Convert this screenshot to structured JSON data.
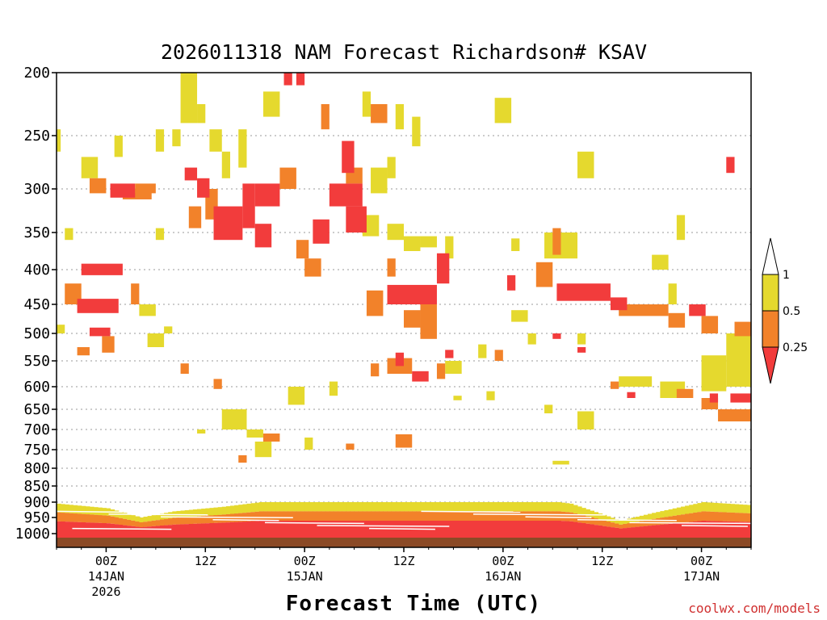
{
  "chart_data": {
    "type": "heatmap",
    "title": "2026011318 NAM Forecast Richardson# KSAV",
    "xlabel": "Forecast Time (UTC)",
    "ylabel": "",
    "y_axis": {
      "unit": "hPa",
      "range": [
        1000,
        200
      ],
      "ticks": [
        "200",
        "250",
        "300",
        "350",
        "400",
        "450",
        "500",
        "550",
        "600",
        "650",
        "700",
        "750",
        "800",
        "850",
        "900",
        "950",
        "1000"
      ]
    },
    "x_axis": {
      "unit": "forecast hour",
      "range": [
        0,
        84
      ],
      "ticks": [
        {
          "hour": 6,
          "label": "00Z",
          "sublabel": "14JAN",
          "year": "2026"
        },
        {
          "hour": 18,
          "label": "12Z",
          "sublabel": "",
          "year": ""
        },
        {
          "hour": 30,
          "label": "00Z",
          "sublabel": "15JAN",
          "year": ""
        },
        {
          "hour": 42,
          "label": "12Z",
          "sublabel": "",
          "year": ""
        },
        {
          "hour": 54,
          "label": "00Z",
          "sublabel": "16JAN",
          "year": ""
        },
        {
          "hour": 66,
          "label": "12Z",
          "sublabel": "",
          "year": ""
        },
        {
          "hour": 78,
          "label": "00Z",
          "sublabel": "17JAN",
          "year": ""
        }
      ]
    },
    "colorbar": {
      "labels": [
        "1",
        "0.5",
        "0.25"
      ],
      "bins": [
        {
          "range": "0.5-1",
          "color": "#e5d92e"
        },
        {
          "range": "0.25-0.5",
          "color": "#f2822a"
        },
        {
          "range": "<0.25",
          "color": "#f23c3c"
        }
      ]
    },
    "levels": [
      [
        {
          "h0": 6.5,
          "h1": 9.5,
          "p0": 295,
          "p1": 310,
          "cat": 2
        },
        {
          "h0": 9.5,
          "h1": 12,
          "p0": 295,
          "p1": 305,
          "cat": 1
        },
        {
          "h0": 3,
          "h1": 8,
          "p0": 392,
          "p1": 408,
          "cat": 2
        },
        {
          "h0": 2.5,
          "h1": 7.5,
          "p0": 442,
          "p1": 465,
          "cat": 2
        },
        {
          "h0": 4,
          "h1": 6.5,
          "p0": 490,
          "p1": 505,
          "cat": 2
        },
        {
          "h0": 2.5,
          "h1": 4,
          "p0": 525,
          "p1": 540,
          "cat": 1
        },
        {
          "h0": 15.5,
          "h1": 17,
          "p0": 280,
          "p1": 292,
          "cat": 2
        },
        {
          "h0": 17,
          "h1": 18.5,
          "p0": 290,
          "p1": 310,
          "cat": 2
        },
        {
          "h0": 19,
          "h1": 22.5,
          "p0": 320,
          "p1": 360,
          "cat": 2
        },
        {
          "h0": 22.5,
          "h1": 24,
          "p0": 295,
          "p1": 345,
          "cat": 2
        },
        {
          "h0": 24,
          "h1": 27,
          "p0": 295,
          "p1": 320,
          "cat": 2
        },
        {
          "h0": 24,
          "h1": 26,
          "p0": 340,
          "p1": 370,
          "cat": 2
        },
        {
          "h0": 27.5,
          "h1": 28.5,
          "p0": 195,
          "p1": 210,
          "cat": 2
        },
        {
          "h0": 29,
          "h1": 30,
          "p0": 195,
          "p1": 210,
          "cat": 2
        },
        {
          "h0": 31,
          "h1": 33,
          "p0": 335,
          "p1": 365,
          "cat": 2
        },
        {
          "h0": 33,
          "h1": 37,
          "p0": 295,
          "p1": 320,
          "cat": 2
        },
        {
          "h0": 35,
          "h1": 37.5,
          "p0": 320,
          "p1": 350,
          "cat": 2
        },
        {
          "h0": 34.5,
          "h1": 36,
          "p0": 255,
          "p1": 285,
          "cat": 2
        },
        {
          "h0": 40,
          "h1": 46,
          "p0": 422,
          "p1": 450,
          "cat": 2
        },
        {
          "h0": 46,
          "h1": 47.5,
          "p0": 378,
          "p1": 420,
          "cat": 2
        },
        {
          "h0": 43,
          "h1": 45,
          "p0": 570,
          "p1": 590,
          "cat": 2
        },
        {
          "h0": 41,
          "h1": 42,
          "p0": 535,
          "p1": 560,
          "cat": 2
        },
        {
          "h0": 47,
          "h1": 48,
          "p0": 530,
          "p1": 545,
          "cat": 2
        },
        {
          "h0": 60.5,
          "h1": 67,
          "p0": 420,
          "p1": 445,
          "cat": 2
        },
        {
          "h0": 67,
          "h1": 69,
          "p0": 440,
          "p1": 460,
          "cat": 2
        },
        {
          "h0": 76.5,
          "h1": 78.5,
          "p0": 450,
          "p1": 470,
          "cat": 2
        },
        {
          "h0": 79,
          "h1": 80,
          "p0": 615,
          "p1": 635,
          "cat": 2
        },
        {
          "h0": 81.5,
          "h1": 84,
          "p0": 615,
          "p1": 635,
          "cat": 2
        },
        {
          "h0": 81,
          "h1": 82,
          "p0": 270,
          "p1": 285,
          "cat": 2
        },
        {
          "h0": 54.5,
          "h1": 55.5,
          "p0": 408,
          "p1": 430,
          "cat": 2
        },
        {
          "h0": 60,
          "h1": 61,
          "p0": 500,
          "p1": 510,
          "cat": 2
        },
        {
          "h0": 63,
          "h1": 64,
          "p0": 525,
          "p1": 535,
          "cat": 2
        },
        {
          "h0": 69,
          "h1": 70,
          "p0": 612,
          "p1": 625,
          "cat": 2
        }
      ],
      [
        {
          "h0": 4,
          "h1": 6,
          "p0": 290,
          "p1": 305,
          "cat": 1
        },
        {
          "h0": 8,
          "h1": 11.5,
          "p0": 300,
          "p1": 312,
          "cat": 1
        },
        {
          "h0": 1,
          "h1": 3,
          "p0": 420,
          "p1": 450,
          "cat": 1
        },
        {
          "h0": 9,
          "h1": 10,
          "p0": 420,
          "p1": 450,
          "cat": 1
        },
        {
          "h0": 5.5,
          "h1": 7,
          "p0": 505,
          "p1": 535,
          "cat": 1
        },
        {
          "h0": 16,
          "h1": 17.5,
          "p0": 320,
          "p1": 345,
          "cat": 1
        },
        {
          "h0": 18,
          "h1": 19.5,
          "p0": 300,
          "p1": 335,
          "cat": 1
        },
        {
          "h0": 27,
          "h1": 29,
          "p0": 280,
          "p1": 300,
          "cat": 1
        },
        {
          "h0": 29,
          "h1": 30.5,
          "p0": 360,
          "p1": 385,
          "cat": 1
        },
        {
          "h0": 30,
          "h1": 32,
          "p0": 385,
          "p1": 410,
          "cat": 1
        },
        {
          "h0": 32,
          "h1": 33,
          "p0": 225,
          "p1": 245,
          "cat": 1
        },
        {
          "h0": 35,
          "h1": 37,
          "p0": 280,
          "p1": 295,
          "cat": 1
        },
        {
          "h0": 38,
          "h1": 40,
          "p0": 225,
          "p1": 240,
          "cat": 1
        },
        {
          "h0": 37.5,
          "h1": 39.5,
          "p0": 430,
          "p1": 470,
          "cat": 1
        },
        {
          "h0": 40,
          "h1": 41,
          "p0": 385,
          "p1": 410,
          "cat": 1
        },
        {
          "h0": 42,
          "h1": 44,
          "p0": 460,
          "p1": 490,
          "cat": 1
        },
        {
          "h0": 44,
          "h1": 46,
          "p0": 450,
          "p1": 510,
          "cat": 1
        },
        {
          "h0": 40,
          "h1": 43,
          "p0": 545,
          "p1": 575,
          "cat": 1
        },
        {
          "h0": 46,
          "h1": 47,
          "p0": 555,
          "p1": 585,
          "cat": 1
        },
        {
          "h0": 38,
          "h1": 39,
          "p0": 555,
          "p1": 580,
          "cat": 1
        },
        {
          "h0": 41,
          "h1": 43,
          "p0": 712,
          "p1": 745,
          "cat": 1
        },
        {
          "h0": 25,
          "h1": 27,
          "p0": 710,
          "p1": 730,
          "cat": 1
        },
        {
          "h0": 53,
          "h1": 54,
          "p0": 530,
          "p1": 550,
          "cat": 1
        },
        {
          "h0": 58,
          "h1": 60,
          "p0": 390,
          "p1": 425,
          "cat": 1
        },
        {
          "h0": 60,
          "h1": 61,
          "p0": 345,
          "p1": 380,
          "cat": 1
        },
        {
          "h0": 68,
          "h1": 74,
          "p0": 450,
          "p1": 470,
          "cat": 1
        },
        {
          "h0": 74,
          "h1": 76,
          "p0": 465,
          "p1": 490,
          "cat": 1
        },
        {
          "h0": 78,
          "h1": 80,
          "p0": 470,
          "p1": 500,
          "cat": 1
        },
        {
          "h0": 82,
          "h1": 84,
          "p0": 480,
          "p1": 505,
          "cat": 1
        },
        {
          "h0": 75,
          "h1": 77,
          "p0": 605,
          "p1": 625,
          "cat": 1
        },
        {
          "h0": 78,
          "h1": 80,
          "p0": 625,
          "p1": 650,
          "cat": 1
        },
        {
          "h0": 80,
          "h1": 84,
          "p0": 650,
          "p1": 680,
          "cat": 1
        },
        {
          "h0": 67,
          "h1": 68,
          "p0": 590,
          "p1": 605,
          "cat": 1
        },
        {
          "h0": 22,
          "h1": 23,
          "p0": 765,
          "p1": 785,
          "cat": 1
        },
        {
          "h0": 35,
          "h1": 36,
          "p0": 735,
          "p1": 750,
          "cat": 1
        },
        {
          "h0": 19,
          "h1": 20,
          "p0": 585,
          "p1": 605,
          "cat": 1
        },
        {
          "h0": 15,
          "h1": 16,
          "p0": 555,
          "p1": 575,
          "cat": 1
        }
      ],
      [
        {
          "h0": 15,
          "h1": 17,
          "p0": 200,
          "p1": 240,
          "cat": 0
        },
        {
          "h0": 17,
          "h1": 18,
          "p0": 225,
          "p1": 240,
          "cat": 0
        },
        {
          "h0": 18.5,
          "h1": 20,
          "p0": 245,
          "p1": 265,
          "cat": 0
        },
        {
          "h0": 20,
          "h1": 21,
          "p0": 265,
          "p1": 290,
          "cat": 0
        },
        {
          "h0": 22,
          "h1": 23,
          "p0": 245,
          "p1": 280,
          "cat": 0
        },
        {
          "h0": 3,
          "h1": 5,
          "p0": 270,
          "p1": 290,
          "cat": 0
        },
        {
          "h0": 7,
          "h1": 8,
          "p0": 250,
          "p1": 270,
          "cat": 0
        },
        {
          "h0": 0,
          "h1": 0.5,
          "p0": 245,
          "p1": 265,
          "cat": 0
        },
        {
          "h0": 12,
          "h1": 13,
          "p0": 245,
          "p1": 265,
          "cat": 0
        },
        {
          "h0": 14,
          "h1": 15,
          "p0": 245,
          "p1": 260,
          "cat": 0
        },
        {
          "h0": 25,
          "h1": 27,
          "p0": 215,
          "p1": 235,
          "cat": 0
        },
        {
          "h0": 37,
          "h1": 38,
          "p0": 215,
          "p1": 235,
          "cat": 0
        },
        {
          "h0": 41,
          "h1": 42,
          "p0": 225,
          "p1": 245,
          "cat": 0
        },
        {
          "h0": 43,
          "h1": 44,
          "p0": 235,
          "p1": 260,
          "cat": 0
        },
        {
          "h0": 40,
          "h1": 41,
          "p0": 270,
          "p1": 290,
          "cat": 0
        },
        {
          "h0": 38,
          "h1": 40,
          "p0": 280,
          "p1": 305,
          "cat": 0
        },
        {
          "h0": 37,
          "h1": 39,
          "p0": 330,
          "p1": 355,
          "cat": 0
        },
        {
          "h0": 40,
          "h1": 42,
          "p0": 340,
          "p1": 360,
          "cat": 0
        },
        {
          "h0": 42,
          "h1": 44,
          "p0": 355,
          "p1": 375,
          "cat": 0
        },
        {
          "h0": 44,
          "h1": 46,
          "p0": 355,
          "p1": 370,
          "cat": 0
        },
        {
          "h0": 47,
          "h1": 48,
          "p0": 355,
          "p1": 385,
          "cat": 0
        },
        {
          "h0": 53,
          "h1": 55,
          "p0": 220,
          "p1": 240,
          "cat": 0
        },
        {
          "h0": 59,
          "h1": 63,
          "p0": 350,
          "p1": 385,
          "cat": 0
        },
        {
          "h0": 55,
          "h1": 56,
          "p0": 358,
          "p1": 375,
          "cat": 0
        },
        {
          "h0": 72,
          "h1": 74,
          "p0": 380,
          "p1": 400,
          "cat": 0
        },
        {
          "h0": 74,
          "h1": 75,
          "p0": 420,
          "p1": 450,
          "cat": 0
        },
        {
          "h0": 75,
          "h1": 76,
          "p0": 330,
          "p1": 360,
          "cat": 0
        },
        {
          "h0": 84,
          "h1": 85,
          "p0": 270,
          "p1": 290,
          "cat": 0
        },
        {
          "h0": 81,
          "h1": 84,
          "p0": 500,
          "p1": 600,
          "cat": 0
        },
        {
          "h0": 78,
          "h1": 81,
          "p0": 540,
          "p1": 610,
          "cat": 0
        },
        {
          "h0": 68,
          "h1": 72,
          "p0": 580,
          "p1": 600,
          "cat": 0
        },
        {
          "h0": 73,
          "h1": 76,
          "p0": 590,
          "p1": 625,
          "cat": 0
        },
        {
          "h0": 59,
          "h1": 60,
          "p0": 640,
          "p1": 660,
          "cat": 0
        },
        {
          "h0": 63,
          "h1": 65,
          "p0": 655,
          "p1": 700,
          "cat": 0
        },
        {
          "h0": 28,
          "h1": 30,
          "p0": 600,
          "p1": 640,
          "cat": 0
        },
        {
          "h0": 30,
          "h1": 31,
          "p0": 720,
          "p1": 750,
          "cat": 0
        },
        {
          "h0": 33,
          "h1": 34,
          "p0": 590,
          "p1": 620,
          "cat": 0
        },
        {
          "h0": 20,
          "h1": 23,
          "p0": 650,
          "p1": 700,
          "cat": 0
        },
        {
          "h0": 23,
          "h1": 25,
          "p0": 700,
          "p1": 720,
          "cat": 0
        },
        {
          "h0": 24,
          "h1": 26,
          "p0": 730,
          "p1": 770,
          "cat": 0
        },
        {
          "h0": 17,
          "h1": 18,
          "p0": 700,
          "p1": 710,
          "cat": 0
        },
        {
          "h0": 47,
          "h1": 49,
          "p0": 550,
          "p1": 575,
          "cat": 0
        },
        {
          "h0": 48,
          "h1": 49,
          "p0": 620,
          "p1": 630,
          "cat": 0
        },
        {
          "h0": 10,
          "h1": 12,
          "p0": 450,
          "p1": 470,
          "cat": 0
        },
        {
          "h0": 11,
          "h1": 13,
          "p0": 500,
          "p1": 525,
          "cat": 0
        },
        {
          "h0": 13,
          "h1": 14,
          "p0": 488,
          "p1": 500,
          "cat": 0
        },
        {
          "h0": 1,
          "h1": 2,
          "p0": 345,
          "p1": 360,
          "cat": 0
        },
        {
          "h0": 0,
          "h1": 1,
          "p0": 485,
          "p1": 500,
          "cat": 0
        },
        {
          "h0": 12,
          "h1": 13,
          "p0": 345,
          "p1": 360,
          "cat": 0
        },
        {
          "h0": 51,
          "h1": 52,
          "p0": 520,
          "p1": 545,
          "cat": 0
        },
        {
          "h0": 52,
          "h1": 53,
          "p0": 610,
          "p1": 630,
          "cat": 0
        },
        {
          "h0": 55,
          "h1": 57,
          "p0": 460,
          "p1": 480,
          "cat": 0
        },
        {
          "h0": 57,
          "h1": 58,
          "p0": 500,
          "p1": 520,
          "cat": 0
        },
        {
          "h0": 63,
          "h1": 65,
          "p0": 265,
          "p1": 290,
          "cat": 0
        },
        {
          "h0": 63,
          "h1": 64,
          "p0": 500,
          "p1": 520,
          "cat": 0
        },
        {
          "h0": 60,
          "h1": 62,
          "p0": 780,
          "p1": 790,
          "cat": 0
        }
      ]
    ],
    "surface": {
      "bands": [
        {
          "p0": 900,
          "p1": 930,
          "cat": 0
        },
        {
          "p0": 930,
          "p1": 960,
          "cat": 1
        },
        {
          "p0": 960,
          "p1": 1000,
          "cat": 2
        }
      ],
      "profile": [
        {
          "hour": 0,
          "top": 905
        },
        {
          "hour": 6,
          "top": 920
        },
        {
          "hour": 10,
          "top": 950
        },
        {
          "hour": 14,
          "top": 930
        },
        {
          "hour": 20,
          "top": 915
        },
        {
          "hour": 26,
          "top": 895
        },
        {
          "hour": 32,
          "top": 900
        },
        {
          "hour": 40,
          "top": 895
        },
        {
          "hour": 48,
          "top": 880
        },
        {
          "hour": 56,
          "top": 885
        },
        {
          "hour": 62,
          "top": 905
        },
        {
          "hour": 68,
          "top": 960
        },
        {
          "hour": 72,
          "top": 935
        },
        {
          "hour": 78,
          "top": 900
        },
        {
          "hour": 84,
          "top": 910
        }
      ],
      "ground_color": "#8b4a26"
    }
  },
  "page": {
    "credit": "coolwx.com/models"
  }
}
